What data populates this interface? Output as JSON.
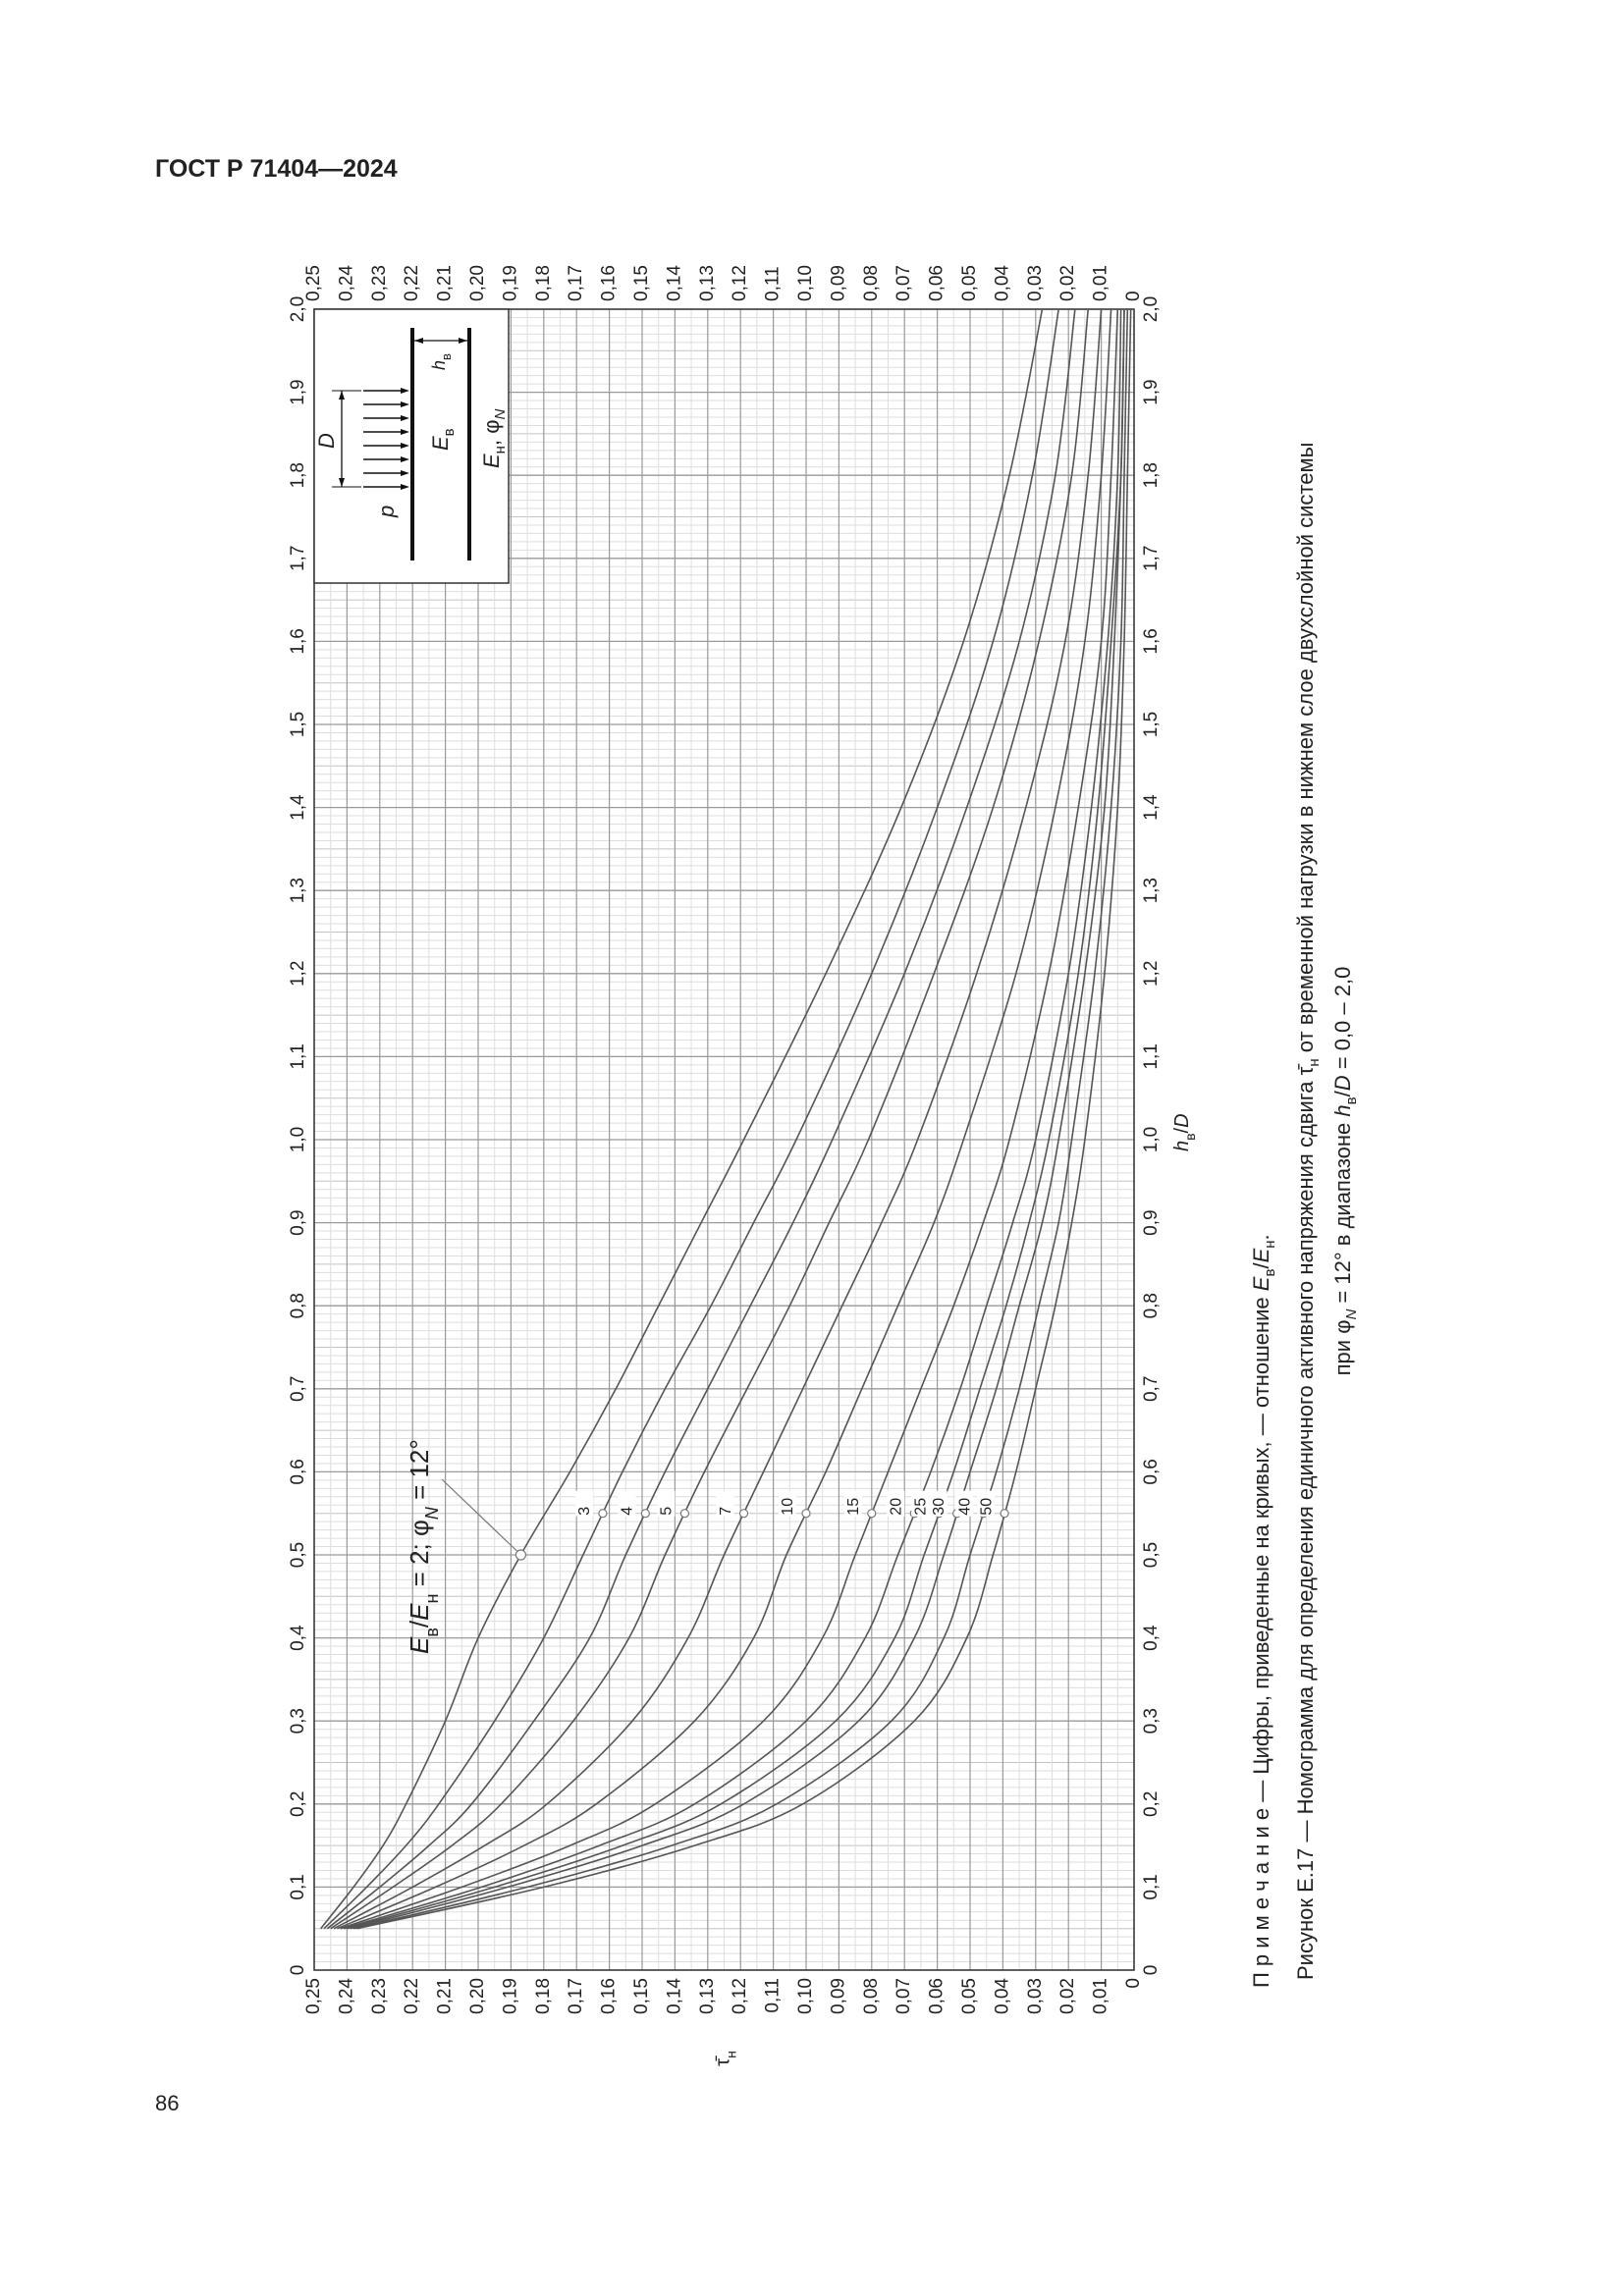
{
  "header": {
    "title": "ГОСТ Р 71404—2024"
  },
  "page_number": "86",
  "chart_data": {
    "type": "line",
    "x": [
      0.05,
      0.1,
      0.15,
      0.2,
      0.3,
      0.4,
      0.5,
      0.6,
      0.7,
      0.8,
      0.9,
      1.0,
      1.2,
      1.4,
      1.6,
      1.8,
      2.0
    ],
    "series": [
      {
        "color": "#555555",
        "values": [
          0.248,
          0.238,
          0.229,
          0.222,
          0.21,
          0.2,
          0.187,
          0.172,
          0.158,
          0.145,
          0.132,
          0.119,
          0.094,
          0.071,
          0.052,
          0.038,
          0.028
        ]
      },
      {
        "name": "3",
        "color": "#555555",
        "values": [
          0.247,
          0.234,
          0.222,
          0.212,
          0.195,
          0.18,
          0.168,
          0.156,
          0.143,
          0.129,
          0.116,
          0.103,
          0.08,
          0.06,
          0.043,
          0.031,
          0.023
        ]
      },
      {
        "name": "4",
        "color": "#555555",
        "values": [
          0.246,
          0.23,
          0.215,
          0.202,
          0.183,
          0.166,
          0.155,
          0.143,
          0.13,
          0.117,
          0.104,
          0.092,
          0.07,
          0.051,
          0.035,
          0.024,
          0.018
        ]
      },
      {
        "name": "5",
        "color": "#555555",
        "values": [
          0.245,
          0.226,
          0.208,
          0.193,
          0.171,
          0.154,
          0.143,
          0.131,
          0.118,
          0.105,
          0.093,
          0.081,
          0.061,
          0.043,
          0.029,
          0.019,
          0.014
        ]
      },
      {
        "name": "7",
        "color": "#555555",
        "values": [
          0.244,
          0.22,
          0.198,
          0.179,
          0.153,
          0.136,
          0.125,
          0.113,
          0.101,
          0.089,
          0.077,
          0.066,
          0.048,
          0.033,
          0.021,
          0.014,
          0.01
        ]
      },
      {
        "name": "10",
        "color": "#555555",
        "values": [
          0.243,
          0.213,
          0.186,
          0.164,
          0.134,
          0.116,
          0.106,
          0.094,
          0.083,
          0.072,
          0.061,
          0.052,
          0.036,
          0.024,
          0.015,
          0.01,
          0.007
        ]
      },
      {
        "name": "15",
        "color": "#555555",
        "values": [
          0.242,
          0.205,
          0.172,
          0.146,
          0.113,
          0.095,
          0.085,
          0.075,
          0.065,
          0.055,
          0.046,
          0.038,
          0.026,
          0.017,
          0.01,
          0.007,
          0.005
        ]
      },
      {
        "name": "20",
        "color": "#555555",
        "values": [
          0.241,
          0.199,
          0.163,
          0.134,
          0.1,
          0.082,
          0.072,
          0.062,
          0.053,
          0.045,
          0.037,
          0.03,
          0.02,
          0.013,
          0.008,
          0.005,
          0.004
        ]
      },
      {
        "name": "25",
        "color": "#555555",
        "values": [
          0.24,
          0.195,
          0.156,
          0.126,
          0.091,
          0.073,
          0.064,
          0.055,
          0.047,
          0.039,
          0.032,
          0.026,
          0.017,
          0.011,
          0.007,
          0.004,
          0.003
        ]
      },
      {
        "name": "30",
        "color": "#555555",
        "values": [
          0.239,
          0.191,
          0.15,
          0.119,
          0.084,
          0.067,
          0.058,
          0.05,
          0.042,
          0.035,
          0.028,
          0.023,
          0.015,
          0.009,
          0.006,
          0.004,
          0.003
        ]
      },
      {
        "name": "40",
        "color": "#555555",
        "values": [
          0.238,
          0.185,
          0.141,
          0.109,
          0.074,
          0.058,
          0.05,
          0.042,
          0.035,
          0.029,
          0.023,
          0.019,
          0.012,
          0.007,
          0.004,
          0.003,
          0.002
        ]
      },
      {
        "name": "50",
        "color": "#555555",
        "values": [
          0.237,
          0.18,
          0.134,
          0.101,
          0.067,
          0.051,
          0.043,
          0.036,
          0.03,
          0.024,
          0.019,
          0.015,
          0.009,
          0.005,
          0.003,
          0.002,
          0.001
        ]
      }
    ],
    "xlim": [
      0,
      2
    ],
    "ylim": [
      0,
      0.25
    ],
    "xticks": [
      0,
      {
        "value": 0.1,
        "label": "0,1"
      },
      {
        "value": 0.2,
        "label": "0,2"
      },
      {
        "value": 0.3,
        "label": "0,3"
      },
      {
        "value": 0.4,
        "label": "0,4"
      },
      {
        "value": 0.5,
        "label": "0,5"
      },
      {
        "value": 0.6,
        "label": "0,6"
      },
      {
        "value": 0.7,
        "label": "0,7"
      },
      {
        "value": 0.8,
        "label": "0,8"
      },
      {
        "value": 0.9,
        "label": "0,9"
      },
      {
        "value": 1.0,
        "label": "1,0"
      },
      {
        "value": 1.1,
        "label": "1,1"
      },
      {
        "value": 1.2,
        "label": "1,2"
      },
      {
        "value": 1.3,
        "label": "1,3"
      },
      {
        "value": 1.4,
        "label": "1,4"
      },
      {
        "value": 1.5,
        "label": "1,5"
      },
      {
        "value": 1.6,
        "label": "1,6"
      },
      {
        "value": 1.7,
        "label": "1,7"
      },
      {
        "value": 1.8,
        "label": "1,8"
      },
      {
        "value": 1.9,
        "label": "1,9"
      },
      {
        "value": 2.0,
        "label": "2,0"
      }
    ],
    "yticks": [
      0,
      {
        "value": 0.01,
        "label": "0,01"
      },
      {
        "value": 0.02,
        "label": "0,02"
      },
      {
        "value": 0.03,
        "label": "0,03"
      },
      {
        "value": 0.04,
        "label": "0,04"
      },
      {
        "value": 0.05,
        "label": "0,05"
      },
      {
        "value": 0.06,
        "label": "0,06"
      },
      {
        "value": 0.07,
        "label": "0,07"
      },
      {
        "value": 0.08,
        "label": "0,08"
      },
      {
        "value": 0.09,
        "label": "0,09"
      },
      {
        "value": 0.1,
        "label": "0,10"
      },
      {
        "value": 0.11,
        "label": "0,11"
      },
      {
        "value": 0.12,
        "label": "0,12"
      },
      {
        "value": 0.13,
        "label": "0,13"
      },
      {
        "value": 0.14,
        "label": "0,14"
      },
      {
        "value": 0.15,
        "label": "0,15"
      },
      {
        "value": 0.16,
        "label": "0,16"
      },
      {
        "value": 0.17,
        "label": "0,17"
      },
      {
        "value": 0.18,
        "label": "0,18"
      },
      {
        "value": 0.19,
        "label": "0,19"
      },
      {
        "value": 0.2,
        "label": "0,20"
      },
      {
        "value": 0.21,
        "label": "0,21"
      },
      {
        "value": 0.22,
        "label": "0,22"
      },
      {
        "value": 0.23,
        "label": "0,23"
      },
      {
        "value": 0.24,
        "label": "0,24"
      },
      {
        "value": 0.25,
        "label": "0,25"
      }
    ],
    "grid": true,
    "x_label": [
      {
        "text": "h",
        "italic": true
      },
      {
        "text": "в",
        "sub": true
      },
      {
        "text": "/"
      },
      {
        "text": "D",
        "italic": true
      }
    ],
    "y_label": [
      {
        "text": "τ̄"
      },
      {
        "text": "н",
        "sub": true
      }
    ],
    "annotation": [
      {
        "text": "E",
        "italic": true
      },
      {
        "text": "в",
        "sub": true
      },
      {
        "text": "/"
      },
      {
        "text": "E",
        "italic": true
      },
      {
        "text": "н",
        "sub": true
      },
      {
        "text": " = 2; φ"
      },
      {
        "text": "N",
        "sub": true,
        "italic": true
      },
      {
        "text": " = 12°"
      }
    ],
    "inset": {
      "p": [
        {
          "text": "p",
          "italic": true
        }
      ],
      "d": [
        {
          "text": "D",
          "italic": true
        }
      ],
      "h": [
        {
          "text": "h",
          "italic": true
        },
        {
          "text": "в",
          "sub": true
        }
      ],
      "upper": [
        {
          "text": "E",
          "italic": true
        },
        {
          "text": "в",
          "sub": true
        }
      ],
      "lower": [
        {
          "text": "E",
          "italic": true
        },
        {
          "text": "н",
          "sub": true
        },
        {
          "text": ", φ"
        },
        {
          "text": "N",
          "sub": true,
          "italic": true
        }
      ]
    }
  },
  "note": [
    {
      "text": "П р и м е ч а н и е"
    },
    {
      "text": " — Цифры, приведенные на кривых, — отношение "
    },
    {
      "text": "E",
      "italic": true
    },
    {
      "text": "в",
      "sub": true
    },
    {
      "text": "/"
    },
    {
      "text": "E",
      "italic": true
    },
    {
      "text": "н",
      "sub": true
    },
    {
      "text": "."
    }
  ],
  "caption": [
    [
      {
        "text": "Рисунок Е.17 — Номограмма для определения единичного активного напряжения сдвига "
      },
      {
        "text": "τ̄"
      },
      {
        "text": "н",
        "sub": true
      },
      {
        "text": " от временной нагрузки в нижнем слое двухслойной системы"
      }
    ],
    [
      {
        "text": "при φ"
      },
      {
        "text": "N",
        "sub": true,
        "italic": true
      },
      {
        "text": " = 12° в диапазоне "
      },
      {
        "text": "h",
        "italic": true
      },
      {
        "text": "в",
        "sub": true
      },
      {
        "text": "/"
      },
      {
        "text": "D",
        "italic": true
      },
      {
        "text": " = 0,0 – 2,0"
      }
    ]
  ]
}
